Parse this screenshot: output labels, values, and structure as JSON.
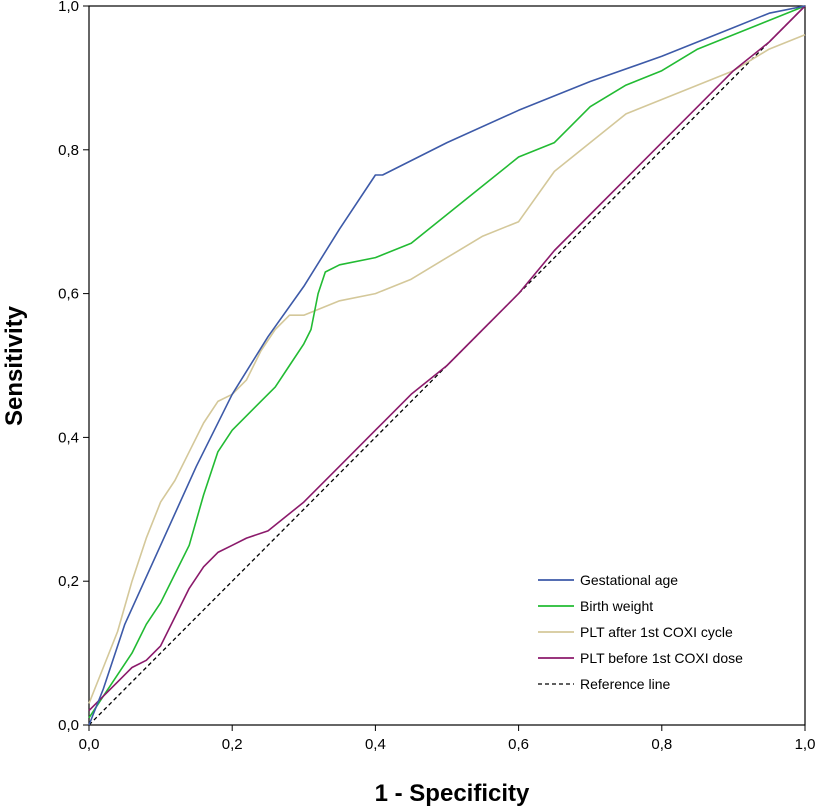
{
  "chart_data": {
    "type": "line",
    "title": "",
    "xlabel": "1 - Specificity",
    "ylabel": "Sensitivity",
    "xlim": [
      0,
      1
    ],
    "ylim": [
      0,
      1
    ],
    "x_ticks": [
      "0,0",
      "0,2",
      "0,4",
      "0,6",
      "0,8",
      "1,0"
    ],
    "y_ticks": [
      "0,0",
      "0,2",
      "0,4",
      "0,6",
      "0,8",
      "1,0"
    ],
    "legend_position": "bottom-right",
    "series": [
      {
        "name": "Gestational age",
        "color": "#3d5aa8",
        "style": "solid",
        "x": [
          0,
          0.02,
          0.05,
          0.1,
          0.15,
          0.2,
          0.25,
          0.3,
          0.35,
          0.4,
          0.41,
          0.5,
          0.6,
          0.7,
          0.8,
          0.9,
          0.95,
          1
        ],
        "y": [
          0,
          0.05,
          0.14,
          0.25,
          0.36,
          0.46,
          0.54,
          0.61,
          0.69,
          0.765,
          0.765,
          0.81,
          0.855,
          0.895,
          0.93,
          0.97,
          0.99,
          1
        ]
      },
      {
        "name": "Birth weight",
        "color": "#22bb33",
        "style": "solid",
        "x": [
          0,
          0.02,
          0.04,
          0.06,
          0.08,
          0.1,
          0.12,
          0.14,
          0.16,
          0.18,
          0.2,
          0.22,
          0.24,
          0.26,
          0.28,
          0.3,
          0.31,
          0.32,
          0.33,
          0.35,
          0.4,
          0.45,
          0.5,
          0.55,
          0.6,
          0.65,
          0.7,
          0.75,
          0.8,
          0.85,
          0.9,
          0.95,
          1
        ],
        "y": [
          0.01,
          0.04,
          0.07,
          0.1,
          0.14,
          0.17,
          0.21,
          0.25,
          0.32,
          0.38,
          0.41,
          0.43,
          0.45,
          0.47,
          0.5,
          0.53,
          0.55,
          0.6,
          0.63,
          0.64,
          0.65,
          0.67,
          0.71,
          0.75,
          0.79,
          0.81,
          0.86,
          0.89,
          0.91,
          0.94,
          0.96,
          0.98,
          1
        ]
      },
      {
        "name": "PLT after 1st COXI cycle",
        "color": "#d4c89a",
        "style": "solid",
        "x": [
          0,
          0.02,
          0.04,
          0.06,
          0.08,
          0.1,
          0.12,
          0.14,
          0.16,
          0.18,
          0.2,
          0.22,
          0.24,
          0.26,
          0.28,
          0.3,
          0.35,
          0.4,
          0.45,
          0.5,
          0.55,
          0.6,
          0.65,
          0.7,
          0.75,
          0.8,
          0.85,
          0.9,
          0.95,
          1
        ],
        "y": [
          0.03,
          0.08,
          0.13,
          0.2,
          0.26,
          0.31,
          0.34,
          0.38,
          0.42,
          0.45,
          0.46,
          0.48,
          0.52,
          0.55,
          0.57,
          0.57,
          0.59,
          0.6,
          0.62,
          0.65,
          0.68,
          0.7,
          0.77,
          0.81,
          0.85,
          0.87,
          0.89,
          0.91,
          0.94,
          0.96
        ]
      },
      {
        "name": "PLT before 1st COXI dose",
        "color": "#8b1a6b",
        "style": "solid",
        "x": [
          0,
          0.02,
          0.04,
          0.06,
          0.08,
          0.1,
          0.12,
          0.14,
          0.16,
          0.18,
          0.2,
          0.22,
          0.25,
          0.3,
          0.35,
          0.4,
          0.45,
          0.5,
          0.55,
          0.6,
          0.65,
          0.7,
          0.75,
          0.8,
          0.85,
          0.9,
          0.95,
          1
        ],
        "y": [
          0.02,
          0.04,
          0.06,
          0.08,
          0.09,
          0.11,
          0.15,
          0.19,
          0.22,
          0.24,
          0.25,
          0.26,
          0.27,
          0.31,
          0.36,
          0.41,
          0.46,
          0.5,
          0.55,
          0.6,
          0.66,
          0.71,
          0.76,
          0.81,
          0.86,
          0.91,
          0.95,
          1
        ]
      },
      {
        "name": "Reference line",
        "color": "#000000",
        "style": "dashed",
        "x": [
          0,
          1
        ],
        "y": [
          0,
          1
        ]
      }
    ]
  }
}
